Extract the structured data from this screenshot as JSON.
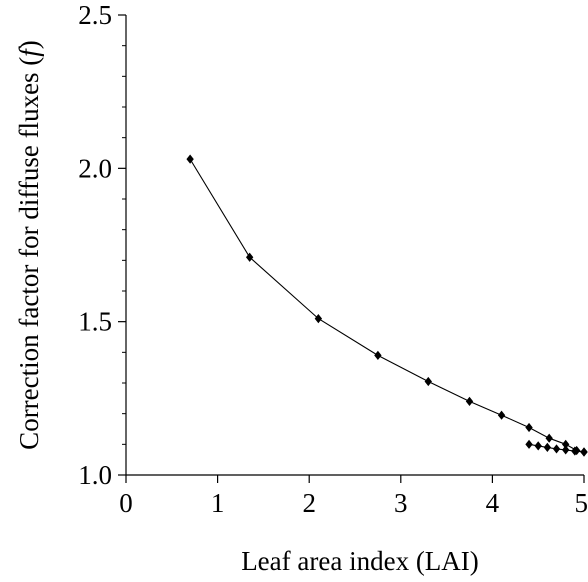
{
  "chart_data": {
    "type": "line",
    "title": "",
    "xlabel": "Leaf area index (LAI)",
    "ylabel_main": "Correction factor for diffuse fluxes (",
    "ylabel_symbol": "f",
    "ylabel_close": ")",
    "xlim": [
      0,
      5
    ],
    "ylim": [
      1.0,
      2.5
    ],
    "xticks": [
      0,
      1,
      2,
      3,
      4,
      5
    ],
    "xtick_labels": [
      "0",
      "1",
      "2",
      "3",
      "4",
      "5"
    ],
    "yticks": [
      1.0,
      1.5,
      2.0,
      2.5
    ],
    "ytick_labels": [
      "1.0",
      "1.5",
      "2.0",
      "2.5"
    ],
    "grid": false,
    "legend": "none",
    "series": [
      {
        "x": [
          0.7,
          1.35,
          2.1,
          2.75,
          3.3,
          3.75,
          4.1,
          4.4,
          4.62,
          4.8,
          4.92,
          5.0
        ],
        "y": [
          2.03,
          1.71,
          1.51,
          1.39,
          1.305,
          1.24,
          1.195,
          1.155,
          1.12,
          1.1,
          1.08,
          1.075
        ]
      },
      {
        "x": [
          4.4,
          4.5,
          4.6,
          4.7,
          4.8,
          4.9,
          5.0
        ],
        "y": [
          1.1,
          1.095,
          1.09,
          1.085,
          1.082,
          1.078,
          1.075
        ]
      }
    ]
  }
}
